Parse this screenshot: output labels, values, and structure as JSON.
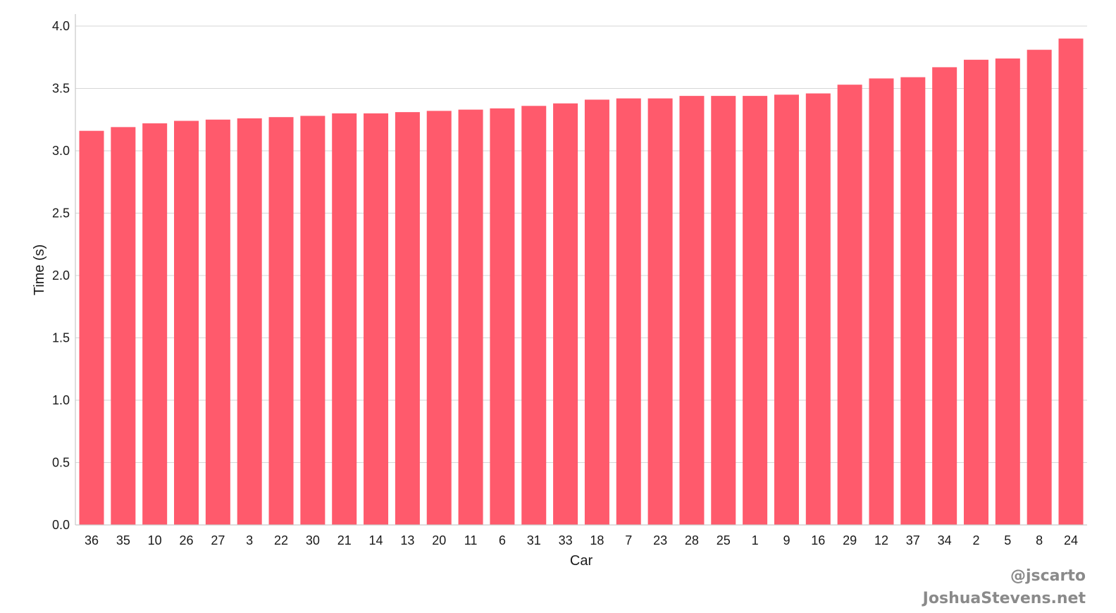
{
  "chart_data": {
    "type": "bar",
    "title": "",
    "xlabel": "Car",
    "ylabel": "Time (s)",
    "ylim": [
      0,
      4.1
    ],
    "yticks": [
      "0.0",
      "0.5",
      "1.0",
      "1.5",
      "2.0",
      "2.5",
      "3.0",
      "3.5",
      "4.0"
    ],
    "grid": "horizontal",
    "bar_color": "#ff5a6c",
    "categories": [
      "36",
      "35",
      "10",
      "26",
      "27",
      "3",
      "22",
      "30",
      "21",
      "14",
      "13",
      "20",
      "11",
      "6",
      "31",
      "33",
      "18",
      "7",
      "23",
      "28",
      "25",
      "1",
      "9",
      "16",
      "29",
      "12",
      "37",
      "34",
      "2",
      "5",
      "8",
      "24"
    ],
    "values": [
      3.16,
      3.19,
      3.22,
      3.24,
      3.25,
      3.26,
      3.27,
      3.28,
      3.3,
      3.3,
      3.31,
      3.32,
      3.33,
      3.34,
      3.36,
      3.38,
      3.41,
      3.42,
      3.42,
      3.44,
      3.44,
      3.44,
      3.45,
      3.46,
      3.53,
      3.58,
      3.59,
      3.67,
      3.73,
      3.74,
      3.81,
      3.9
    ]
  },
  "credits": {
    "handle": "@jscarto",
    "website": "JoshuaStevens.net"
  }
}
